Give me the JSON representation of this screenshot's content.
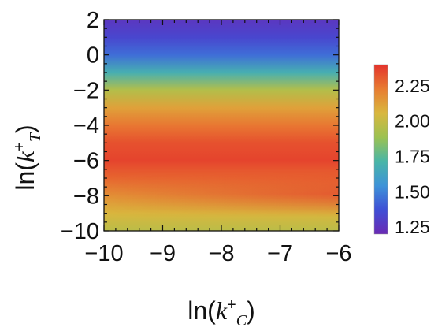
{
  "chart_data": {
    "type": "heatmap",
    "xlabel": {
      "prefix": "ln(",
      "var": "k",
      "sup": "+",
      "sub": "C",
      "suffix": ")"
    },
    "ylabel": {
      "prefix": "ln(",
      "var": "k",
      "sup": "+",
      "sub": "T",
      "suffix": ")"
    },
    "x_ticks": [
      "−10",
      "−9",
      "−8",
      "−7",
      "−6"
    ],
    "x_tick_values": [
      -10,
      -9,
      -8,
      -7,
      -6
    ],
    "y_ticks": [
      "2",
      "0",
      "−2",
      "−4",
      "−6",
      "−8",
      "−10"
    ],
    "y_tick_values": [
      2,
      0,
      -2,
      -4,
      -6,
      -8,
      -10
    ],
    "xlim": [
      -10,
      -6
    ],
    "ylim": [
      -10,
      2
    ],
    "colorbar": {
      "range": [
        1.2,
        2.4
      ],
      "ticks": [
        "1.25",
        "1.50",
        "1.75",
        "2.00",
        "2.25"
      ],
      "tick_values": [
        1.25,
        1.5,
        1.75,
        2.0,
        2.25
      ],
      "colors": [
        "#6a2ab4",
        "#3f4fd6",
        "#3e93d8",
        "#49b6a7",
        "#9cc251",
        "#d9b73e",
        "#e87c32",
        "#e4332c"
      ]
    },
    "y_profile": [
      {
        "y": 2.0,
        "value": 1.26
      },
      {
        "y": 1.0,
        "value": 1.33
      },
      {
        "y": 0.0,
        "value": 1.45
      },
      {
        "y": -1.0,
        "value": 1.68
      },
      {
        "y": -2.0,
        "value": 1.95
      },
      {
        "y": -3.0,
        "value": 2.12
      },
      {
        "y": -4.0,
        "value": 2.24
      },
      {
        "y": -5.0,
        "value": 2.33
      },
      {
        "y": -6.0,
        "value": 2.36
      },
      {
        "y": -7.0,
        "value": 2.28
      },
      {
        "y": -8.0,
        "value": 2.17
      },
      {
        "y": -9.0,
        "value": 2.06
      },
      {
        "y": -10.0,
        "value": 1.97
      }
    ],
    "x_variation_note": "values near y = -8 increase slightly toward x = -6"
  }
}
